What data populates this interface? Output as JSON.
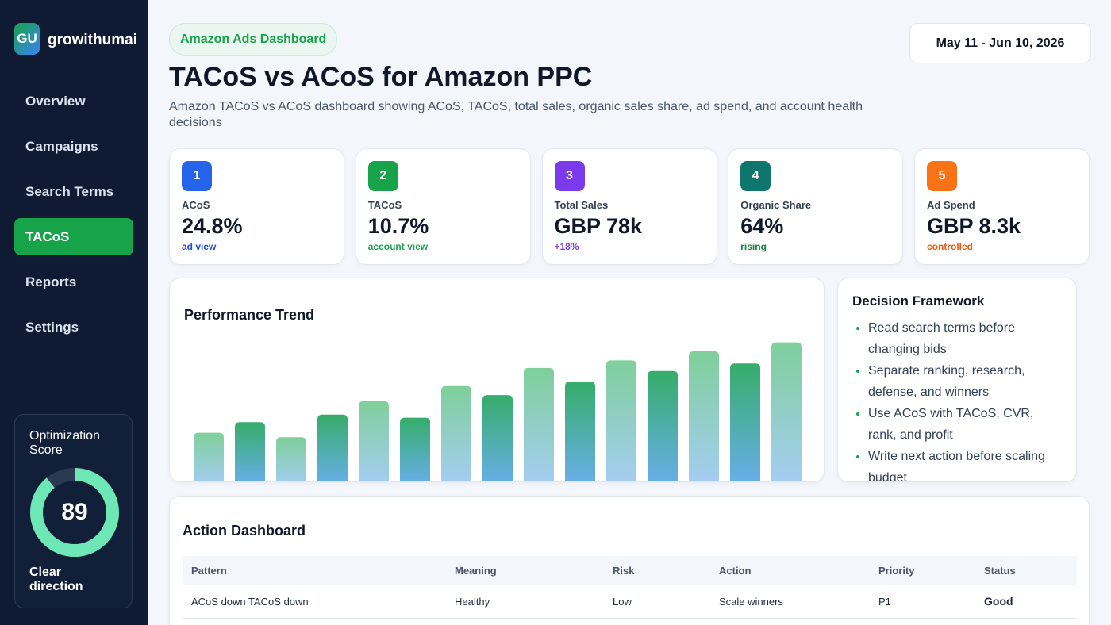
{
  "sidebar": {
    "logo": "GU",
    "brand": "growithumai",
    "nav": [
      "Overview",
      "Campaigns",
      "Search Terms",
      "TACoS",
      "Reports",
      "Settings"
    ],
    "active": 3,
    "score": {
      "label": "Optimization Score",
      "value": 89,
      "caption": "Clear direction",
      "color": "#6ee7b7"
    }
  },
  "header": {
    "badge": "Amazon Ads Dashboard",
    "title": "TACoS vs ACoS for Amazon PPC",
    "subtitle": "Amazon TACoS vs ACoS dashboard showing ACoS, TACoS, total sales, organic sales share, ad spend, and account health decisions",
    "date": "May 11 - Jun 10, 2026"
  },
  "kpis": [
    {
      "num": 1,
      "label": "ACoS",
      "value": "24.8%",
      "note": "ad view",
      "color": "#2563eb",
      "note_color": "#1d4ed8"
    },
    {
      "num": 2,
      "label": "TACoS",
      "value": "10.7%",
      "note": "account view",
      "color": "#16a34a",
      "note_color": "#16a34a"
    },
    {
      "num": 3,
      "label": "Total Sales",
      "value": "GBP 78k",
      "note": "+18%",
      "color": "#7c3aed",
      "note_color": "#7c3aed"
    },
    {
      "num": 4,
      "label": "Organic Share",
      "value": "64%",
      "note": "rising",
      "color": "#0f766e",
      "note_color": "#15803d"
    },
    {
      "num": 5,
      "label": "Ad Spend",
      "value": "GBP 8.3k",
      "note": "controlled",
      "color": "#f97316",
      "note_color": "#ea580c"
    }
  ],
  "trend": {
    "title": "Performance Trend",
    "values": [
      36,
      43,
      33,
      48,
      57,
      46,
      67,
      61,
      79,
      70,
      84,
      77,
      90,
      82,
      96
    ],
    "ylim": [
      0,
      100
    ]
  },
  "framework": {
    "title": "Decision Framework",
    "items": [
      "Read search terms before changing bids",
      "Separate ranking, research, defense, and winners",
      "Use ACoS with TACoS, CVR, rank, and profit",
      "Write next action before scaling budget"
    ]
  },
  "table": {
    "title": "Action Dashboard",
    "columns": [
      "Pattern",
      "Meaning",
      "Risk",
      "Action",
      "Priority",
      "Status"
    ],
    "rows": [
      [
        "ACoS down TACoS down",
        "Healthy",
        "Low",
        "Scale winners",
        "P1",
        "Good"
      ]
    ]
  }
}
